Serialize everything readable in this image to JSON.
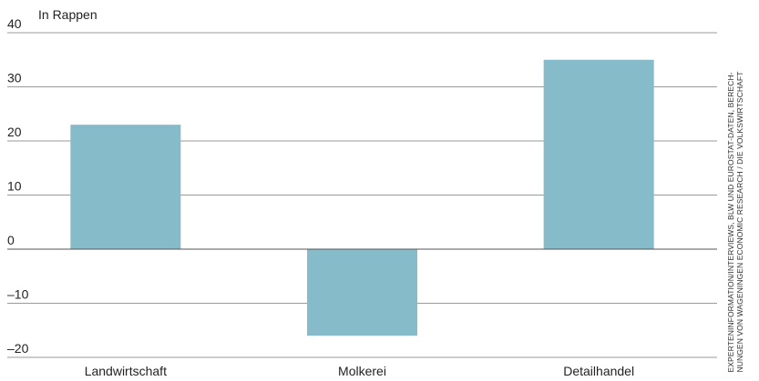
{
  "chart_data": {
    "type": "bar",
    "unit_label": "In Rappen",
    "categories": [
      "Landwirtschaft",
      "Molkerei",
      "Detailhandel"
    ],
    "values": [
      23,
      -16,
      35
    ],
    "ylim": [
      -20,
      40
    ],
    "yticks": [
      -20,
      -10,
      0,
      10,
      20,
      30,
      40
    ],
    "ytick_labels": [
      "–20",
      "–10",
      "0",
      "10",
      "20",
      "30",
      "40"
    ],
    "grid": true,
    "bar_color": "#86bbc9",
    "grid_color": "#9a9a9a",
    "zero_line_color": "#555555"
  },
  "source": {
    "line1": "Experteninformation/Interviews, BLW und Eurostat-Daten, Berech-",
    "line2": "nungen von Wageningen Economic Research / Die Volkswirtschaft"
  }
}
